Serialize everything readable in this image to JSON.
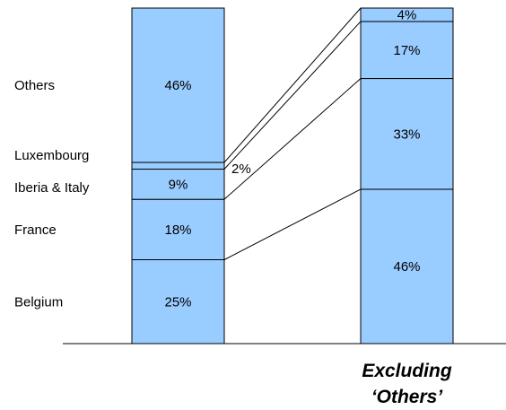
{
  "chart_data": {
    "type": "bar",
    "stacked": true,
    "normalized_to": 100,
    "categories": [
      "",
      "Excluding ‘Others’"
    ],
    "series": [
      {
        "name": "Belgium",
        "values": [
          25,
          46
        ]
      },
      {
        "name": "France",
        "values": [
          18,
          33
        ]
      },
      {
        "name": "Iberia & Italy",
        "values": [
          9,
          17
        ]
      },
      {
        "name": "Luxembourg",
        "values": [
          2,
          4
        ]
      },
      {
        "name": "Others",
        "values": [
          46,
          0
        ]
      }
    ],
    "value_labels": [
      [
        "25%",
        "18%",
        "9%",
        "2%",
        "46%"
      ],
      [
        "46%",
        "33%",
        "17%",
        "4%",
        ""
      ]
    ],
    "series_labels": [
      "Belgium",
      "France",
      "Iberia & Italy",
      "Luxembourg",
      "Others"
    ],
    "bar2_label_lines": [
      "Excluding",
      "‘Others’"
    ],
    "connector_lines": true,
    "ylim": [
      0,
      100
    ],
    "legend": "left",
    "grid": false,
    "colors": {
      "bar_fill": "#99ccff",
      "bar_stroke": "#000000",
      "axis": "#000000"
    }
  }
}
